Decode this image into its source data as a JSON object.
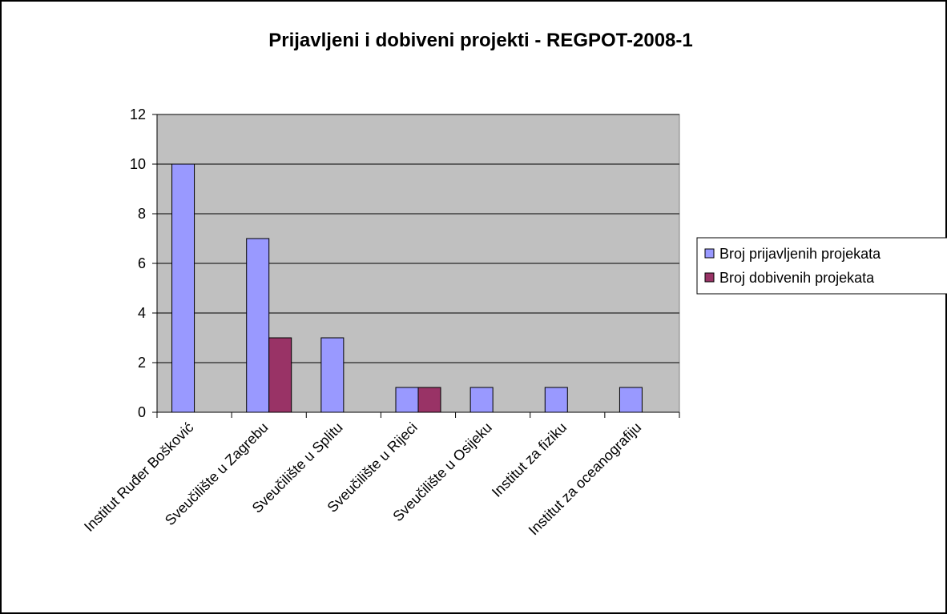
{
  "chart_data": {
    "type": "bar",
    "title": "Prijavljeni i dobiveni projekti - REGPOT-2008-1",
    "categories": [
      "Institut Ruđer Bošković",
      "Sveučilište u Zagrebu",
      "Sveučilište u Splitu",
      "Sveučilište u Rijeci",
      "Sveučilište u Osijeku",
      "Institut za fiziku",
      "Institut za oceanografiju"
    ],
    "series": [
      {
        "name": "Broj prijavljenih projekata",
        "color": "#9999ff",
        "values": [
          10,
          7,
          3,
          1,
          1,
          1,
          1
        ]
      },
      {
        "name": "Broj dobivenih projekata",
        "color": "#993366",
        "values": [
          0,
          3,
          0,
          1,
          0,
          0,
          0
        ]
      }
    ],
    "ylim": [
      0,
      12
    ],
    "yticks": [
      0,
      2,
      4,
      6,
      8,
      10,
      12
    ],
    "grid": true,
    "legend": "right"
  }
}
